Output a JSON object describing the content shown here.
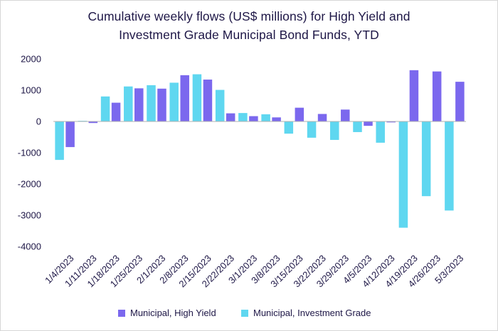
{
  "chart_data": {
    "type": "bar",
    "title": "Cumulative weekly flows (US$ millions) for High Yield and Investment Grade Municipal Bond Funds, YTD",
    "title_lines": [
      "Cumulative weekly flows (US$ millions) for High Yield and",
      "Investment Grade Municipal Bond Funds, YTD"
    ],
    "xlabel": "",
    "ylabel": "",
    "ylim": [
      -4000,
      2000
    ],
    "yticks": [
      2000,
      1000,
      0,
      -1000,
      -2000,
      -3000,
      -4000
    ],
    "ytick_labels": [
      "2000",
      "1000",
      "0",
      "-1000",
      "-2000",
      "-3000",
      "-4000"
    ],
    "grid": false,
    "legend_position": "bottom",
    "categories": [
      "1/4/2023",
      "1/11/2023",
      "1/18/2023",
      "1/25/2023",
      "2/1/2023",
      "2/8/2023",
      "2/15/2023",
      "2/22/2023",
      "3/1/2023",
      "3/8/2023",
      "3/15/2023",
      "3/22/2023",
      "3/29/2023",
      "4/5/2023",
      "4/12/2023",
      "4/19/2023",
      "4/26/2023",
      "5/3/2023"
    ],
    "series": [
      {
        "name": "Municipal, Investment Grade",
        "color": "#5fd7f0",
        "values": [
          -1230,
          20,
          800,
          1120,
          1160,
          1240,
          1510,
          1010,
          270,
          230,
          -390,
          -520,
          -590,
          -340,
          -680,
          -3400,
          -2390,
          -2850
        ]
      },
      {
        "name": "Municipal, High Yield",
        "color": "#7b68ee",
        "values": [
          -820,
          -50,
          600,
          1060,
          1050,
          1480,
          1340,
          260,
          170,
          130,
          440,
          240,
          380,
          -140,
          -30,
          1640,
          1600,
          1270
        ]
      }
    ],
    "legend_order": [
      "Municipal, High Yield",
      "Municipal, Investment Grade"
    ]
  }
}
